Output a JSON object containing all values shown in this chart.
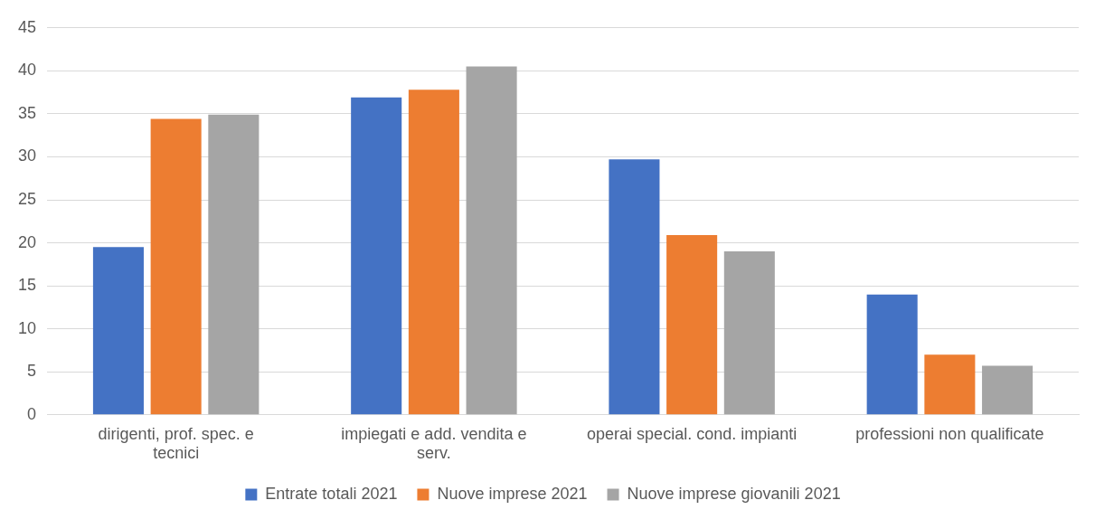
{
  "chart_data": {
    "type": "bar",
    "categories": [
      "dirigenti, prof. spec. e tecnici",
      "impiegati e add. vendita e serv.",
      "operai special. cond. impianti",
      "professioni non qualificate"
    ],
    "series": [
      {
        "name": "Entrate totali 2021",
        "color": "#4472c4",
        "values": [
          19.5,
          36.9,
          29.7,
          14.0
        ]
      },
      {
        "name": "Nuove imprese 2021",
        "color": "#ed7d31",
        "values": [
          34.4,
          37.8,
          20.9,
          7.0
        ]
      },
      {
        "name": "Nuove imprese giovanili 2021",
        "color": "#a5a5a5",
        "values": [
          34.9,
          40.5,
          19.0,
          5.7
        ]
      }
    ],
    "ylim": [
      0,
      45
    ],
    "yticks": [
      0,
      5,
      10,
      15,
      20,
      25,
      30,
      35,
      40,
      45
    ],
    "grid": "y",
    "legend": "bottom"
  }
}
